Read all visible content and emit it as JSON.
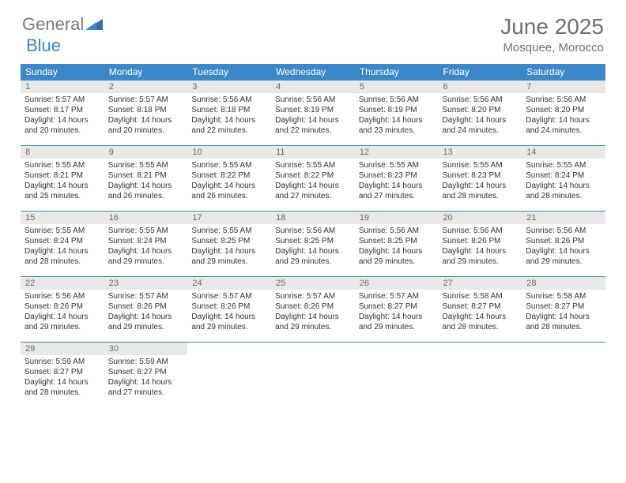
{
  "logo": {
    "text1": "General",
    "text2": "Blue"
  },
  "title": {
    "month": "June 2025",
    "location": "Mosquee, Morocco"
  },
  "colors": {
    "header_bg": "#3b87c8",
    "header_fg": "#ffffff",
    "daynum_bg": "#e8e8e8",
    "daynum_fg": "#6a6a6a",
    "border": "#3b87c8",
    "text": "#333333",
    "title_fg": "#6f6f6f",
    "logo_gray": "#7a7a7a",
    "logo_blue": "#3b87c8"
  },
  "weekdays": [
    "Sunday",
    "Monday",
    "Tuesday",
    "Wednesday",
    "Thursday",
    "Friday",
    "Saturday"
  ],
  "days": [
    {
      "n": "1",
      "sr": "Sunrise: 5:57 AM",
      "ss": "Sunset: 8:17 PM",
      "d1": "Daylight: 14 hours",
      "d2": "and 20 minutes."
    },
    {
      "n": "2",
      "sr": "Sunrise: 5:57 AM",
      "ss": "Sunset: 8:18 PM",
      "d1": "Daylight: 14 hours",
      "d2": "and 20 minutes."
    },
    {
      "n": "3",
      "sr": "Sunrise: 5:56 AM",
      "ss": "Sunset: 8:18 PM",
      "d1": "Daylight: 14 hours",
      "d2": "and 22 minutes."
    },
    {
      "n": "4",
      "sr": "Sunrise: 5:56 AM",
      "ss": "Sunset: 8:19 PM",
      "d1": "Daylight: 14 hours",
      "d2": "and 22 minutes."
    },
    {
      "n": "5",
      "sr": "Sunrise: 5:56 AM",
      "ss": "Sunset: 8:19 PM",
      "d1": "Daylight: 14 hours",
      "d2": "and 23 minutes."
    },
    {
      "n": "6",
      "sr": "Sunrise: 5:56 AM",
      "ss": "Sunset: 8:20 PM",
      "d1": "Daylight: 14 hours",
      "d2": "and 24 minutes."
    },
    {
      "n": "7",
      "sr": "Sunrise: 5:56 AM",
      "ss": "Sunset: 8:20 PM",
      "d1": "Daylight: 14 hours",
      "d2": "and 24 minutes."
    },
    {
      "n": "8",
      "sr": "Sunrise: 5:55 AM",
      "ss": "Sunset: 8:21 PM",
      "d1": "Daylight: 14 hours",
      "d2": "and 25 minutes."
    },
    {
      "n": "9",
      "sr": "Sunrise: 5:55 AM",
      "ss": "Sunset: 8:21 PM",
      "d1": "Daylight: 14 hours",
      "d2": "and 26 minutes."
    },
    {
      "n": "10",
      "sr": "Sunrise: 5:55 AM",
      "ss": "Sunset: 8:22 PM",
      "d1": "Daylight: 14 hours",
      "d2": "and 26 minutes."
    },
    {
      "n": "11",
      "sr": "Sunrise: 5:55 AM",
      "ss": "Sunset: 8:22 PM",
      "d1": "Daylight: 14 hours",
      "d2": "and 27 minutes."
    },
    {
      "n": "12",
      "sr": "Sunrise: 5:55 AM",
      "ss": "Sunset: 8:23 PM",
      "d1": "Daylight: 14 hours",
      "d2": "and 27 minutes."
    },
    {
      "n": "13",
      "sr": "Sunrise: 5:55 AM",
      "ss": "Sunset: 8:23 PM",
      "d1": "Daylight: 14 hours",
      "d2": "and 28 minutes."
    },
    {
      "n": "14",
      "sr": "Sunrise: 5:55 AM",
      "ss": "Sunset: 8:24 PM",
      "d1": "Daylight: 14 hours",
      "d2": "and 28 minutes."
    },
    {
      "n": "15",
      "sr": "Sunrise: 5:55 AM",
      "ss": "Sunset: 8:24 PM",
      "d1": "Daylight: 14 hours",
      "d2": "and 28 minutes."
    },
    {
      "n": "16",
      "sr": "Sunrise: 5:55 AM",
      "ss": "Sunset: 8:24 PM",
      "d1": "Daylight: 14 hours",
      "d2": "and 29 minutes."
    },
    {
      "n": "17",
      "sr": "Sunrise: 5:55 AM",
      "ss": "Sunset: 8:25 PM",
      "d1": "Daylight: 14 hours",
      "d2": "and 29 minutes."
    },
    {
      "n": "18",
      "sr": "Sunrise: 5:56 AM",
      "ss": "Sunset: 8:25 PM",
      "d1": "Daylight: 14 hours",
      "d2": "and 29 minutes."
    },
    {
      "n": "19",
      "sr": "Sunrise: 5:56 AM",
      "ss": "Sunset: 8:25 PM",
      "d1": "Daylight: 14 hours",
      "d2": "and 29 minutes."
    },
    {
      "n": "20",
      "sr": "Sunrise: 5:56 AM",
      "ss": "Sunset: 8:26 PM",
      "d1": "Daylight: 14 hours",
      "d2": "and 29 minutes."
    },
    {
      "n": "21",
      "sr": "Sunrise: 5:56 AM",
      "ss": "Sunset: 8:26 PM",
      "d1": "Daylight: 14 hours",
      "d2": "and 29 minutes."
    },
    {
      "n": "22",
      "sr": "Sunrise: 5:56 AM",
      "ss": "Sunset: 8:26 PM",
      "d1": "Daylight: 14 hours",
      "d2": "and 29 minutes."
    },
    {
      "n": "23",
      "sr": "Sunrise: 5:57 AM",
      "ss": "Sunset: 8:26 PM",
      "d1": "Daylight: 14 hours",
      "d2": "and 29 minutes."
    },
    {
      "n": "24",
      "sr": "Sunrise: 5:57 AM",
      "ss": "Sunset: 8:26 PM",
      "d1": "Daylight: 14 hours",
      "d2": "and 29 minutes."
    },
    {
      "n": "25",
      "sr": "Sunrise: 5:57 AM",
      "ss": "Sunset: 8:26 PM",
      "d1": "Daylight: 14 hours",
      "d2": "and 29 minutes."
    },
    {
      "n": "26",
      "sr": "Sunrise: 5:57 AM",
      "ss": "Sunset: 8:27 PM",
      "d1": "Daylight: 14 hours",
      "d2": "and 29 minutes."
    },
    {
      "n": "27",
      "sr": "Sunrise: 5:58 AM",
      "ss": "Sunset: 8:27 PM",
      "d1": "Daylight: 14 hours",
      "d2": "and 28 minutes."
    },
    {
      "n": "28",
      "sr": "Sunrise: 5:58 AM",
      "ss": "Sunset: 8:27 PM",
      "d1": "Daylight: 14 hours",
      "d2": "and 28 minutes."
    },
    {
      "n": "29",
      "sr": "Sunrise: 5:59 AM",
      "ss": "Sunset: 8:27 PM",
      "d1": "Daylight: 14 hours",
      "d2": "and 28 minutes."
    },
    {
      "n": "30",
      "sr": "Sunrise: 5:59 AM",
      "ss": "Sunset: 8:27 PM",
      "d1": "Daylight: 14 hours",
      "d2": "and 27 minutes."
    }
  ]
}
